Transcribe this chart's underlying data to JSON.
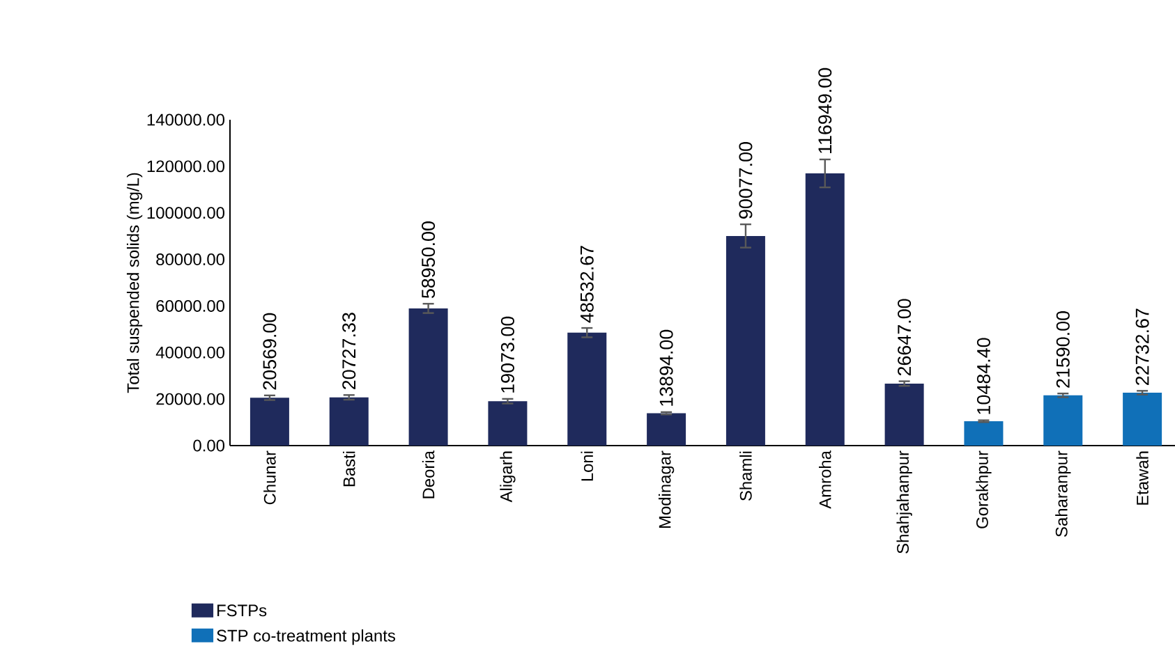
{
  "chart_data": {
    "type": "bar",
    "ylabel": "Total suspended solids (mg/L)",
    "categories": [
      "Chunar",
      "Basti",
      "Deoria",
      "Aligarh",
      "Loni",
      "Modinagar",
      "Shamli",
      "Amroha",
      "Shahjahanpur",
      "Gorakhpur",
      "Saharanpur",
      "Etawah"
    ],
    "series": [
      {
        "name": "FSTPs",
        "color": "#1f2a5c",
        "values": [
          20569.0,
          20727.33,
          58950.0,
          19073.0,
          48532.67,
          13894.0,
          90077.0,
          116949.0,
          26647.0,
          null,
          null,
          null
        ],
        "errors": [
          1000,
          1000,
          2000,
          1000,
          2000,
          500,
          5000,
          6000,
          1000,
          null,
          null,
          null
        ],
        "value_labels": [
          "20569.00",
          "20727.33",
          "58950.00",
          "19073.00",
          "48532.67",
          "13894.00",
          "90077.00",
          "116949.00",
          "26647.00",
          null,
          null,
          null
        ]
      },
      {
        "name": "STP co-treatment plants",
        "color": "#1070b8",
        "values": [
          null,
          null,
          null,
          null,
          null,
          null,
          null,
          null,
          null,
          10484.4,
          21590.0,
          22732.67
        ],
        "errors": [
          null,
          null,
          null,
          null,
          null,
          null,
          null,
          null,
          null,
          400,
          800,
          800
        ],
        "value_labels": [
          null,
          null,
          null,
          null,
          null,
          null,
          null,
          null,
          null,
          "10484.40",
          "21590.00",
          "22732.67"
        ]
      }
    ],
    "ylim": [
      0,
      140000
    ],
    "yticks": [
      {
        "value": 0,
        "label": "0.00"
      },
      {
        "value": 20000,
        "label": "20000.00"
      },
      {
        "value": 40000,
        "label": "40000.00"
      },
      {
        "value": 60000,
        "label": "60000.00"
      },
      {
        "value": 80000,
        "label": "80000.00"
      },
      {
        "value": 100000,
        "label": "100000.00"
      },
      {
        "value": 120000,
        "label": "120000.00"
      },
      {
        "value": 140000,
        "label": "140000.00"
      }
    ],
    "grid": false,
    "legend": "bottom left"
  }
}
